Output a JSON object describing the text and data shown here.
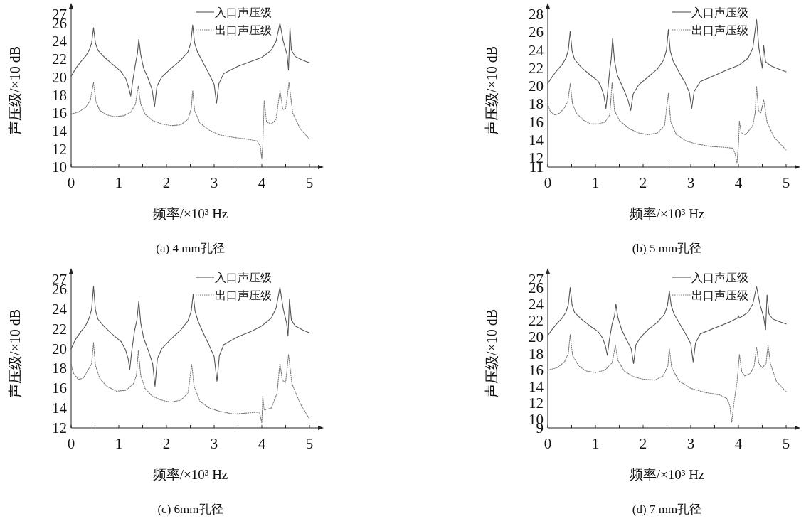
{
  "chart_data": [
    {
      "type": "line",
      "title": "(a) 4 mm孔径",
      "xlabel": "频率/×10³ Hz",
      "ylabel": "声压级/×10 dB",
      "xlim": [
        0,
        5
      ],
      "ylim": [
        10,
        27
      ],
      "xticks": [
        0,
        {
          "value": 0.5,
          "label": null
        },
        1,
        {
          "value": 1.5,
          "label": null
        },
        2,
        {
          "value": 2.5,
          "label": null
        },
        3,
        {
          "value": 3.5,
          "label": null
        },
        4,
        {
          "value": 4.5,
          "label": null
        },
        5
      ],
      "yticks": [
        10,
        12,
        14,
        16,
        18,
        20,
        22,
        24,
        26,
        27
      ],
      "legend": "top right",
      "marker": "none",
      "series": [
        {
          "name": "入口声压级",
          "color": "#555555",
          "line_style": "solid",
          "x": [
            0,
            0.1,
            0.2,
            0.3,
            0.38,
            0.43,
            0.47,
            0.51,
            0.56,
            0.7,
            0.9,
            1.05,
            1.15,
            1.21,
            1.25,
            1.29,
            1.35,
            1.39,
            1.42,
            1.46,
            1.52,
            1.62,
            1.7,
            1.75,
            1.8,
            1.9,
            2.1,
            2.3,
            2.45,
            2.51,
            2.55,
            2.59,
            2.65,
            2.8,
            2.9,
            3.0,
            3.05,
            3.1,
            3.2,
            3.5,
            3.8,
            4.0,
            4.2,
            4.3,
            4.38,
            4.45,
            4.53,
            4.56,
            4.59,
            4.62,
            4.7,
            4.85,
            5.0
          ],
          "values": [
            20.1,
            21.0,
            21.7,
            22.3,
            23.0,
            23.8,
            25.5,
            23.8,
            23.0,
            22.2,
            21.3,
            20.6,
            19.8,
            18.8,
            17.9,
            19.5,
            21.5,
            22.6,
            24.2,
            22.5,
            21.0,
            19.8,
            18.6,
            16.7,
            19.0,
            20.0,
            21.0,
            21.9,
            22.8,
            23.8,
            25.8,
            23.8,
            22.8,
            21.3,
            20.3,
            19.2,
            17.1,
            19.3,
            20.4,
            21.2,
            21.8,
            22.2,
            23.0,
            24.0,
            26.0,
            24.0,
            22.5,
            20.8,
            25.5,
            23.0,
            22.3,
            21.9,
            21.6
          ]
        },
        {
          "name": "出口声压级",
          "color": "#777777",
          "line_style": "dotted",
          "x": [
            0,
            0.15,
            0.3,
            0.4,
            0.47,
            0.52,
            0.6,
            0.75,
            0.9,
            1.1,
            1.25,
            1.35,
            1.41,
            1.46,
            1.55,
            1.7,
            1.9,
            2.1,
            2.3,
            2.45,
            2.52,
            2.55,
            2.59,
            2.7,
            2.9,
            3.1,
            3.4,
            3.7,
            3.9,
            3.97,
            4.0,
            4.02,
            4.05,
            4.1,
            4.2,
            4.3,
            4.38,
            4.44,
            4.5,
            4.57,
            4.65,
            4.8,
            5.0
          ],
          "values": [
            15.9,
            16.1,
            16.6,
            17.4,
            19.4,
            17.3,
            16.3,
            15.8,
            15.6,
            15.7,
            16.1,
            17.0,
            19.0,
            17.0,
            15.9,
            15.2,
            14.8,
            14.6,
            14.7,
            15.3,
            16.5,
            18.5,
            16.3,
            14.9,
            14.1,
            13.6,
            13.3,
            13.1,
            12.9,
            12.3,
            10.9,
            12.5,
            17.4,
            15.0,
            14.8,
            15.3,
            18.5,
            16.4,
            16.5,
            19.4,
            16.0,
            14.3,
            13.1
          ]
        }
      ]
    },
    {
      "type": "line",
      "title": "(b) 5 mm孔径",
      "xlabel": "频率/×10³ Hz",
      "ylabel": "声压级/×10 dB",
      "xlim": [
        0,
        5
      ],
      "ylim": [
        11,
        28
      ],
      "xticks": [
        0,
        {
          "value": 0.5,
          "label": null
        },
        1,
        {
          "value": 1.5,
          "label": null
        },
        2,
        {
          "value": 2.5,
          "label": null
        },
        3,
        {
          "value": 3.5,
          "label": null
        },
        4,
        {
          "value": 4.5,
          "label": null
        },
        5
      ],
      "yticks": [
        11,
        12,
        14,
        16,
        18,
        20,
        22,
        24,
        26,
        28
      ],
      "legend": "top right",
      "marker": "none",
      "series": [
        {
          "name": "入口声压级",
          "color": "#555555",
          "line_style": "solid",
          "x": [
            0,
            0.1,
            0.2,
            0.3,
            0.38,
            0.43,
            0.47,
            0.51,
            0.56,
            0.7,
            0.9,
            1.05,
            1.12,
            1.18,
            1.22,
            1.26,
            1.3,
            1.33,
            1.36,
            1.4,
            1.46,
            1.58,
            1.68,
            1.74,
            1.79,
            1.9,
            2.1,
            2.3,
            2.43,
            2.49,
            2.53,
            2.57,
            2.63,
            2.78,
            2.88,
            2.97,
            3.02,
            3.07,
            3.2,
            3.5,
            3.8,
            4.0,
            4.2,
            4.3,
            4.38,
            4.43,
            4.47,
            4.5,
            4.53,
            4.57,
            4.7,
            4.85,
            5.0
          ],
          "values": [
            20.3,
            21.1,
            21.8,
            22.4,
            23.1,
            24.0,
            26.1,
            23.9,
            23.0,
            22.1,
            21.2,
            20.6,
            19.9,
            18.9,
            17.5,
            19.6,
            21.8,
            23.0,
            25.3,
            22.8,
            21.2,
            19.8,
            18.5,
            17.3,
            19.1,
            20.1,
            21.0,
            21.9,
            22.9,
            24.0,
            26.3,
            23.9,
            22.8,
            21.3,
            20.4,
            19.3,
            17.5,
            19.4,
            20.5,
            21.2,
            21.9,
            22.3,
            23.1,
            24.2,
            27.4,
            24.2,
            23.0,
            22.0,
            24.5,
            22.7,
            22.2,
            21.9,
            21.6
          ]
        },
        {
          "name": "出口声压级",
          "color": "#777777",
          "line_style": "dotted",
          "x": [
            0,
            0.05,
            0.15,
            0.25,
            0.35,
            0.42,
            0.47,
            0.52,
            0.6,
            0.75,
            0.9,
            1.05,
            1.2,
            1.3,
            1.35,
            1.4,
            1.5,
            1.7,
            1.9,
            2.1,
            2.3,
            2.45,
            2.53,
            2.58,
            2.7,
            2.9,
            3.1,
            3.4,
            3.7,
            3.88,
            3.93,
            3.97,
            4.0,
            4.02,
            4.06,
            4.15,
            4.3,
            4.35,
            4.38,
            4.42,
            4.47,
            4.53,
            4.6,
            4.75,
            5.0
          ],
          "values": [
            18.0,
            17.2,
            16.8,
            17.0,
            17.6,
            18.3,
            20.3,
            18.0,
            17.0,
            16.2,
            15.8,
            15.8,
            16.0,
            16.8,
            20.4,
            17.3,
            16.2,
            15.3,
            14.8,
            14.6,
            14.8,
            15.6,
            19.2,
            16.0,
            14.6,
            13.9,
            13.6,
            13.3,
            13.2,
            13.1,
            12.5,
            11.4,
            13.5,
            16.1,
            14.8,
            14.6,
            15.6,
            17.0,
            20.0,
            17.3,
            17.0,
            18.5,
            16.0,
            14.3,
            12.9
          ]
        }
      ]
    },
    {
      "type": "line",
      "title": "(c) 6mm孔径",
      "xlabel": "频率/×10³ Hz",
      "ylabel": "声压级/×10 dB",
      "xlim": [
        0,
        5
      ],
      "ylim": [
        12,
        27
      ],
      "xticks": [
        0,
        {
          "value": 0.5,
          "label": null
        },
        1,
        {
          "value": 1.5,
          "label": null
        },
        2,
        {
          "value": 2.5,
          "label": null
        },
        3,
        {
          "value": 3.5,
          "label": null
        },
        4,
        {
          "value": 4.5,
          "label": null
        },
        5
      ],
      "yticks": [
        12,
        14,
        16,
        18,
        20,
        22,
        24,
        26,
        27
      ],
      "legend": "top right",
      "marker": "none",
      "series": [
        {
          "name": "入口声压级",
          "color": "#555555",
          "line_style": "solid",
          "x": [
            0,
            0.1,
            0.2,
            0.3,
            0.38,
            0.43,
            0.47,
            0.51,
            0.56,
            0.7,
            0.9,
            1.05,
            1.14,
            1.2,
            1.23,
            1.27,
            1.33,
            1.38,
            1.42,
            1.46,
            1.52,
            1.62,
            1.71,
            1.76,
            1.81,
            1.9,
            2.1,
            2.3,
            2.45,
            2.52,
            2.56,
            2.6,
            2.66,
            2.8,
            2.9,
            3.0,
            3.06,
            3.11,
            3.2,
            3.5,
            3.8,
            4.0,
            4.2,
            4.3,
            4.38,
            4.45,
            4.52,
            4.55,
            4.58,
            4.62,
            4.7,
            4.85,
            5.0
          ],
          "values": [
            20.0,
            21.0,
            21.7,
            22.3,
            23.1,
            24.0,
            26.3,
            23.9,
            23.0,
            22.2,
            21.3,
            20.7,
            19.9,
            18.9,
            17.9,
            19.7,
            21.8,
            22.9,
            24.8,
            22.6,
            21.1,
            19.8,
            18.5,
            16.2,
            19.0,
            20.0,
            21.0,
            21.9,
            22.8,
            23.8,
            25.5,
            23.8,
            22.8,
            21.3,
            20.3,
            19.2,
            16.7,
            19.3,
            20.4,
            21.2,
            21.8,
            22.3,
            23.1,
            24.1,
            26.2,
            24.0,
            22.6,
            21.3,
            25.0,
            22.9,
            22.3,
            21.9,
            21.6
          ]
        },
        {
          "name": "出口声压级",
          "color": "#777777",
          "line_style": "dotted",
          "x": [
            0,
            0.05,
            0.15,
            0.25,
            0.35,
            0.43,
            0.47,
            0.51,
            0.6,
            0.75,
            0.95,
            1.15,
            1.3,
            1.37,
            1.41,
            1.46,
            1.55,
            1.7,
            1.9,
            2.1,
            2.3,
            2.45,
            2.53,
            2.58,
            2.7,
            2.9,
            3.1,
            3.4,
            3.7,
            3.95,
            4.0,
            4.02,
            4.05,
            4.2,
            4.32,
            4.38,
            4.43,
            4.5,
            4.56,
            4.63,
            4.8,
            5.0
          ],
          "values": [
            18.4,
            17.5,
            16.9,
            17.0,
            17.8,
            18.5,
            20.6,
            18.3,
            17.0,
            16.2,
            15.7,
            15.8,
            16.4,
            17.3,
            19.8,
            17.3,
            16.0,
            15.2,
            14.8,
            14.6,
            14.8,
            15.5,
            18.4,
            16.2,
            14.7,
            14.0,
            13.7,
            13.4,
            13.5,
            13.6,
            12.5,
            15.2,
            13.8,
            14.0,
            15.5,
            18.6,
            16.8,
            16.6,
            19.4,
            16.5,
            14.5,
            12.9
          ]
        }
      ]
    },
    {
      "type": "line",
      "title": "(d) 7 mm孔径",
      "xlabel": "频率/×10³ Hz",
      "ylabel": "声压级/×10 dB",
      "xlim": [
        0,
        5
      ],
      "ylim": [
        9,
        27
      ],
      "xticks": [
        0,
        {
          "value": 0.5,
          "label": null
        },
        1,
        {
          "value": 1.5,
          "label": null
        },
        2,
        {
          "value": 2.5,
          "label": null
        },
        3,
        {
          "value": 3.5,
          "label": null
        },
        4,
        {
          "value": 4.5,
          "label": null
        },
        5
      ],
      "yticks": [
        9,
        10,
        12,
        14,
        16,
        18,
        20,
        22,
        24,
        26,
        27
      ],
      "legend": "top right",
      "marker": "none",
      "series": [
        {
          "name": "入口声压级",
          "color": "#555555",
          "line_style": "solid",
          "x": [
            0,
            0.1,
            0.2,
            0.3,
            0.38,
            0.43,
            0.47,
            0.51,
            0.56,
            0.7,
            0.9,
            1.05,
            1.15,
            1.21,
            1.25,
            1.29,
            1.35,
            1.4,
            1.43,
            1.47,
            1.55,
            1.65,
            1.75,
            1.8,
            1.85,
            1.95,
            2.1,
            2.3,
            2.45,
            2.51,
            2.55,
            2.59,
            2.65,
            2.8,
            2.9,
            3.0,
            3.05,
            3.1,
            3.2,
            3.5,
            3.8,
            3.98,
            4.0,
            4.02,
            4.2,
            4.3,
            4.38,
            4.45,
            4.53,
            4.57,
            4.6,
            4.64,
            4.72,
            4.85,
            5.0
          ],
          "values": [
            20.2,
            21.0,
            21.7,
            22.3,
            23.0,
            23.9,
            26.0,
            23.9,
            23.0,
            22.2,
            21.3,
            20.7,
            19.9,
            18.9,
            17.8,
            19.6,
            21.6,
            22.6,
            24.0,
            22.4,
            20.9,
            19.7,
            18.6,
            16.8,
            19.1,
            20.0,
            20.9,
            21.8,
            22.8,
            23.8,
            25.6,
            23.8,
            22.8,
            21.3,
            20.3,
            19.2,
            17.0,
            19.3,
            20.4,
            21.1,
            21.8,
            22.3,
            22.6,
            22.3,
            23.0,
            24.0,
            26.1,
            24.0,
            22.4,
            20.9,
            25.1,
            22.8,
            22.2,
            21.9,
            21.6
          ]
        },
        {
          "name": "出口声压级",
          "color": "#777777",
          "line_style": "dotted",
          "x": [
            0,
            0.2,
            0.35,
            0.43,
            0.47,
            0.52,
            0.65,
            0.8,
            1.0,
            1.2,
            1.35,
            1.42,
            1.47,
            1.6,
            1.8,
            2.0,
            2.25,
            2.42,
            2.52,
            2.55,
            2.6,
            2.75,
            3.0,
            3.3,
            3.6,
            3.75,
            3.82,
            3.86,
            3.9,
            3.97,
            4.02,
            4.07,
            4.13,
            4.25,
            4.33,
            4.38,
            4.43,
            4.5,
            4.58,
            4.62,
            4.67,
            4.8,
            5.0
          ],
          "values": [
            16.0,
            16.3,
            17.0,
            18.0,
            20.3,
            17.8,
            16.5,
            15.9,
            15.7,
            16.0,
            16.9,
            19.0,
            17.2,
            15.9,
            15.2,
            14.9,
            14.8,
            15.3,
            16.5,
            18.6,
            16.3,
            14.7,
            13.8,
            13.3,
            13.0,
            12.6,
            11.7,
            9.7,
            11.8,
            14.5,
            17.9,
            15.8,
            15.3,
            15.6,
            16.5,
            18.8,
            16.8,
            16.3,
            16.8,
            19.1,
            16.8,
            14.6,
            13.4
          ]
        }
      ]
    }
  ]
}
